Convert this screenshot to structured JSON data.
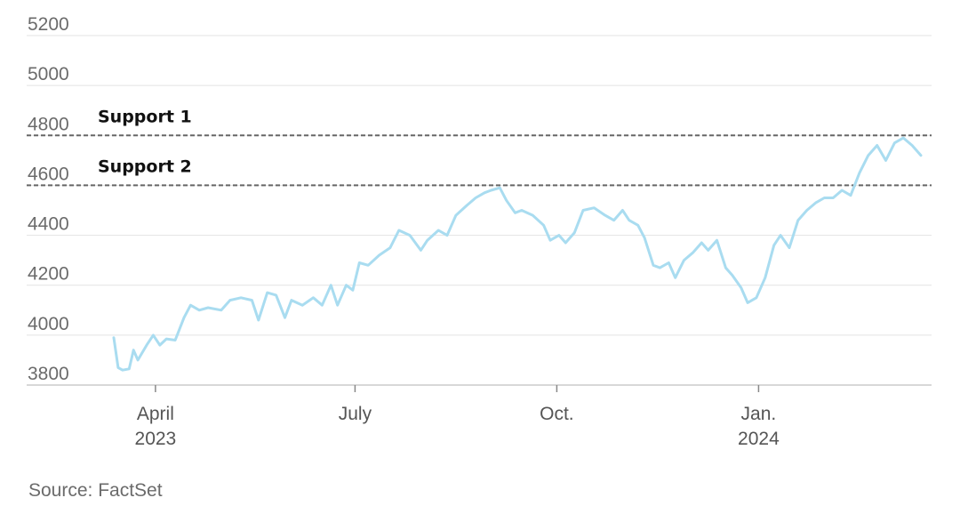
{
  "chart_data": {
    "type": "line",
    "ylim": [
      3800,
      5200
    ],
    "yticks": [
      3800,
      4000,
      4200,
      4400,
      4600,
      4800,
      5000,
      5200
    ],
    "grid": true,
    "x_range": [
      "2023-03-13",
      "2024-03-15"
    ],
    "xticks": [
      {
        "date": "2023-04-01",
        "label": "April",
        "sublabel": "2023"
      },
      {
        "date": "2023-07-01",
        "label": "July",
        "sublabel": ""
      },
      {
        "date": "2023-10-01",
        "label": "Oct.",
        "sublabel": ""
      },
      {
        "date": "2024-01-01",
        "label": "Jan.",
        "sublabel": "2024"
      }
    ],
    "reference_lines": [
      {
        "label": "Support 1",
        "value": 4800
      },
      {
        "label": "Support 2",
        "value": 4600
      }
    ],
    "series": [
      {
        "color": "#a9dcf0",
        "points": [
          [
            "2023-03-13",
            3990
          ],
          [
            "2023-03-15",
            3870
          ],
          [
            "2023-03-17",
            3860
          ],
          [
            "2023-03-20",
            3865
          ],
          [
            "2023-03-22",
            3940
          ],
          [
            "2023-03-24",
            3900
          ],
          [
            "2023-03-28",
            3960
          ],
          [
            "2023-03-31",
            4000
          ],
          [
            "2023-04-03",
            3960
          ],
          [
            "2023-04-06",
            3985
          ],
          [
            "2023-04-10",
            3980
          ],
          [
            "2023-04-14",
            4070
          ],
          [
            "2023-04-17",
            4120
          ],
          [
            "2023-04-21",
            4100
          ],
          [
            "2023-04-25",
            4110
          ],
          [
            "2023-05-01",
            4100
          ],
          [
            "2023-05-05",
            4140
          ],
          [
            "2023-05-10",
            4150
          ],
          [
            "2023-05-15",
            4140
          ],
          [
            "2023-05-18",
            4060
          ],
          [
            "2023-05-22",
            4170
          ],
          [
            "2023-05-26",
            4160
          ],
          [
            "2023-05-30",
            4070
          ],
          [
            "2023-06-02",
            4140
          ],
          [
            "2023-06-07",
            4120
          ],
          [
            "2023-06-12",
            4150
          ],
          [
            "2023-06-16",
            4120
          ],
          [
            "2023-06-20",
            4200
          ],
          [
            "2023-06-23",
            4120
          ],
          [
            "2023-06-27",
            4200
          ],
          [
            "2023-06-30",
            4180
          ],
          [
            "2023-07-03",
            4290
          ],
          [
            "2023-07-07",
            4280
          ],
          [
            "2023-07-12",
            4320
          ],
          [
            "2023-07-17",
            4350
          ],
          [
            "2023-07-21",
            4420
          ],
          [
            "2023-07-26",
            4400
          ],
          [
            "2023-07-31",
            4340
          ],
          [
            "2023-08-03",
            4380
          ],
          [
            "2023-08-08",
            4420
          ],
          [
            "2023-08-12",
            4400
          ],
          [
            "2023-08-16",
            4480
          ],
          [
            "2023-08-21",
            4520
          ],
          [
            "2023-08-25",
            4550
          ],
          [
            "2023-08-29",
            4570
          ],
          [
            "2023-09-01",
            4580
          ],
          [
            "2023-09-05",
            4590
          ],
          [
            "2023-09-08",
            4540
          ],
          [
            "2023-09-12",
            4490
          ],
          [
            "2023-09-15",
            4500
          ],
          [
            "2023-09-20",
            4480
          ],
          [
            "2023-09-25",
            4440
          ],
          [
            "2023-09-28",
            4380
          ],
          [
            "2023-10-02",
            4400
          ],
          [
            "2023-10-05",
            4370
          ],
          [
            "2023-10-09",
            4410
          ],
          [
            "2023-10-13",
            4500
          ],
          [
            "2023-10-18",
            4510
          ],
          [
            "2023-10-23",
            4480
          ],
          [
            "2023-10-27",
            4460
          ],
          [
            "2023-10-31",
            4500
          ],
          [
            "2023-11-03",
            4460
          ],
          [
            "2023-11-07",
            4440
          ],
          [
            "2023-11-10",
            4390
          ],
          [
            "2023-11-14",
            4280
          ],
          [
            "2023-11-17",
            4270
          ],
          [
            "2023-11-21",
            4290
          ],
          [
            "2023-11-24",
            4230
          ],
          [
            "2023-11-28",
            4300
          ],
          [
            "2023-12-02",
            4330
          ],
          [
            "2023-12-06",
            4370
          ],
          [
            "2023-12-09",
            4340
          ],
          [
            "2023-12-13",
            4380
          ],
          [
            "2023-12-17",
            4270
          ],
          [
            "2023-12-20",
            4240
          ],
          [
            "2023-12-24",
            4190
          ],
          [
            "2023-12-27",
            4130
          ],
          [
            "2023-12-31",
            4150
          ],
          [
            "2024-01-04",
            4230
          ],
          [
            "2024-01-08",
            4360
          ],
          [
            "2024-01-11",
            4400
          ],
          [
            "2024-01-15",
            4350
          ],
          [
            "2024-01-19",
            4460
          ],
          [
            "2024-01-23",
            4500
          ],
          [
            "2024-01-27",
            4530
          ],
          [
            "2024-01-31",
            4550
          ],
          [
            "2024-02-04",
            4550
          ],
          [
            "2024-02-08",
            4580
          ],
          [
            "2024-02-12",
            4560
          ],
          [
            "2024-02-16",
            4650
          ],
          [
            "2024-02-20",
            4720
          ],
          [
            "2024-02-24",
            4760
          ],
          [
            "2024-02-28",
            4700
          ],
          [
            "2024-03-03",
            4770
          ],
          [
            "2024-03-07",
            4790
          ],
          [
            "2024-03-11",
            4760
          ],
          [
            "2024-03-15",
            4720
          ]
        ]
      }
    ]
  },
  "source": "Source: FactSet"
}
